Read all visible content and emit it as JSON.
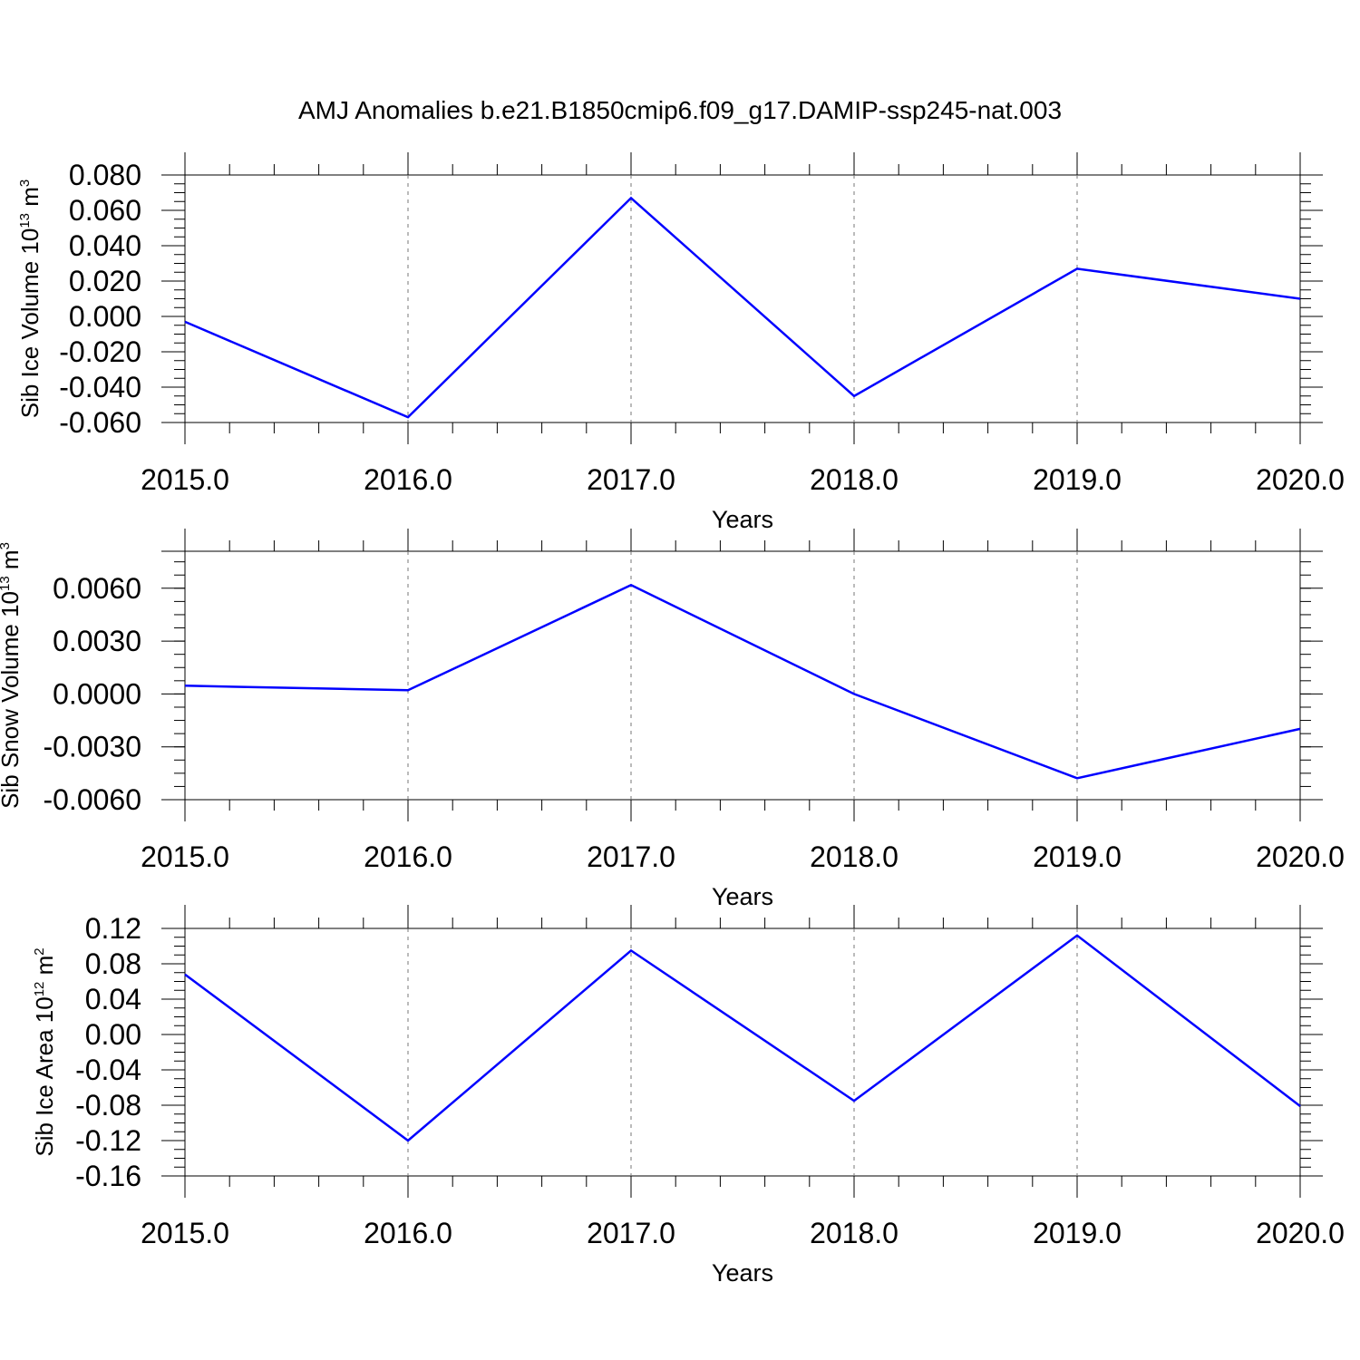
{
  "title": "AMJ Anomalies b.e21.B1850cmip6.f09_g17.DAMIP-ssp245-nat.003",
  "line_color": "#0000ff",
  "chart_data": [
    {
      "type": "line",
      "ylabel": {
        "text": "Sib Ice Volume 10",
        "sup": "13",
        "mid": " m",
        "sup2": "3"
      },
      "xlabel": "Years",
      "xlim": [
        2015.0,
        2020.0
      ],
      "ylim": [
        -0.06,
        0.08
      ],
      "x": [
        2015,
        2016,
        2017,
        2018,
        2019,
        2020
      ],
      "series": [
        {
          "values": [
            -0.003,
            -0.057,
            0.067,
            -0.045,
            0.027,
            0.01
          ]
        }
      ],
      "xticks": [
        "2015.0",
        "2016.0",
        "2017.0",
        "2018.0",
        "2019.0",
        "2020.0"
      ],
      "yticks": [
        {
          "v": 0.08,
          "label": "0.080"
        },
        {
          "v": 0.06,
          "label": "0.060"
        },
        {
          "v": 0.04,
          "label": "0.040"
        },
        {
          "v": 0.02,
          "label": "0.020"
        },
        {
          "v": 0.0,
          "label": "0.000"
        },
        {
          "v": -0.02,
          "label": "-0.020"
        },
        {
          "v": -0.04,
          "label": "-0.040"
        },
        {
          "v": -0.06,
          "label": "-0.060"
        }
      ],
      "yminor_step": 0.005,
      "vgrid": "dashed"
    },
    {
      "type": "line",
      "ylabel": {
        "text": "Sib Snow Volume 10",
        "sup": "13",
        "mid": " m",
        "sup2": "3"
      },
      "xlabel": "Years",
      "xlim": [
        2015.0,
        2020.0
      ],
      "ylim": [
        -0.006,
        0.0081
      ],
      "x": [
        2015,
        2016,
        2017,
        2018,
        2019,
        2020
      ],
      "series": [
        {
          "values": [
            0.00047,
            0.00021,
            0.00618,
            0.0,
            -0.00478,
            -0.00198
          ]
        }
      ],
      "xticks": [
        "2015.0",
        "2016.0",
        "2017.0",
        "2018.0",
        "2019.0",
        "2020.0"
      ],
      "yticks": [
        {
          "v": 0.006,
          "label": "0.0060"
        },
        {
          "v": 0.003,
          "label": "0.0030"
        },
        {
          "v": 0.0,
          "label": "0.0000"
        },
        {
          "v": -0.003,
          "label": "-0.0030"
        },
        {
          "v": -0.006,
          "label": "-0.0060"
        }
      ],
      "yminor_step": 0.00075,
      "vgrid": "dashed"
    },
    {
      "type": "line",
      "ylabel": {
        "text": "Sib Ice Area 10",
        "sup": "12",
        "mid": " m",
        "sup2": "2"
      },
      "xlabel": "Years",
      "xlim": [
        2015.0,
        2020.0
      ],
      "ylim": [
        -0.16,
        0.12
      ],
      "x": [
        2015,
        2016,
        2017,
        2018,
        2019,
        2020
      ],
      "series": [
        {
          "values": [
            0.068,
            -0.12,
            0.095,
            -0.075,
            0.112,
            -0.081
          ]
        }
      ],
      "xticks": [
        "2015.0",
        "2016.0",
        "2017.0",
        "2018.0",
        "2019.0",
        "2020.0"
      ],
      "yticks": [
        {
          "v": 0.12,
          "label": "0.12"
        },
        {
          "v": 0.08,
          "label": "0.08"
        },
        {
          "v": 0.04,
          "label": "0.04"
        },
        {
          "v": 0.0,
          "label": "0.00"
        },
        {
          "v": -0.04,
          "label": "-0.04"
        },
        {
          "v": -0.08,
          "label": "-0.08"
        },
        {
          "v": -0.12,
          "label": "-0.12"
        },
        {
          "v": -0.16,
          "label": "-0.16"
        }
      ],
      "yminor_step": 0.01,
      "vgrid": "dashed"
    }
  ]
}
